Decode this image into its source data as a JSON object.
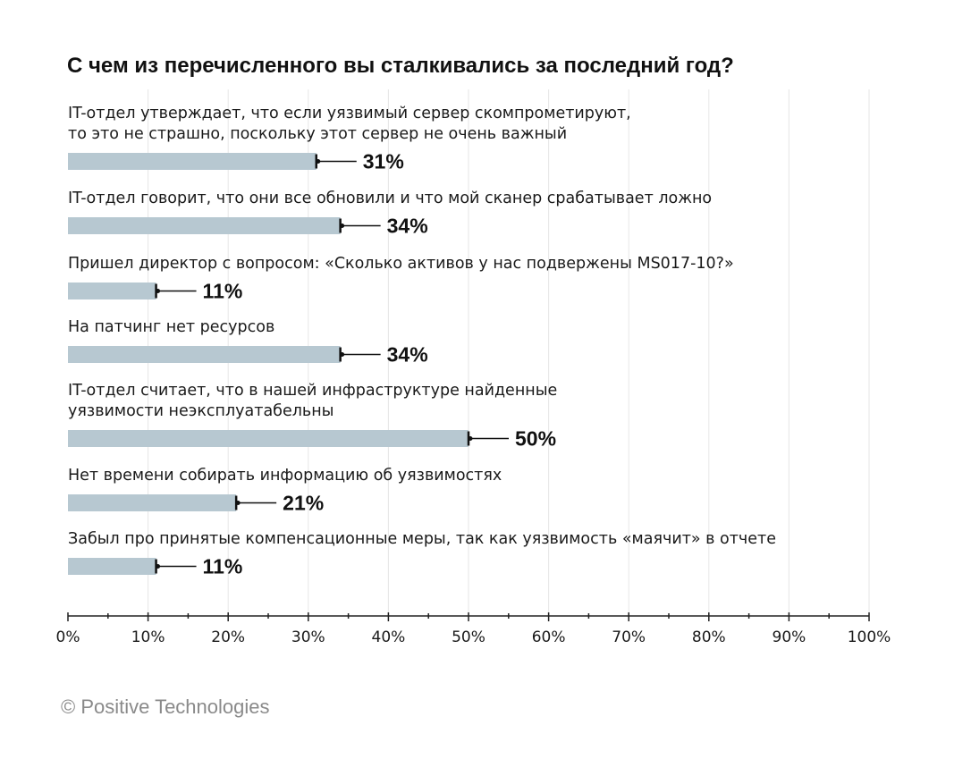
{
  "chart_data": {
    "type": "bar",
    "orientation": "horizontal",
    "title": "С чем из перечисленного вы сталкивались за последний год?",
    "categories": [
      [
        "IT-отдел утверждает, что если уязвимый сервер скомпрометируют,",
        "то это не страшно, поскольку этот сервер не очень важный"
      ],
      [
        "IT-отдел говорит, что они все обновили и что мой сканер срабатывает ложно"
      ],
      [
        "Пришел директор с вопросом: «Сколько активов у нас подвержены MS017-10?»"
      ],
      [
        "На патчинг нет ресурсов"
      ],
      [
        "IT-отдел считает, что в нашей инфраструктуре найденные",
        "уязвимости неэксплуатабельны"
      ],
      [
        "Нет времени собирать информацию об уязвимостях"
      ],
      [
        "Забыл про принятые компенсационные меры, так как уязвимость «маячит» в отчете"
      ]
    ],
    "values": [
      31,
      34,
      11,
      34,
      50,
      21,
      11
    ],
    "value_labels": [
      "31%",
      "34%",
      "11%",
      "34%",
      "50%",
      "21%",
      "11%"
    ],
    "xlim": [
      0,
      100
    ],
    "xticks": [
      0,
      10,
      20,
      30,
      40,
      50,
      60,
      70,
      80,
      90,
      100
    ],
    "xtick_labels": [
      "0%",
      "10%",
      "20%",
      "30%",
      "40%",
      "50%",
      "60%",
      "70%",
      "80%",
      "90%",
      "100%"
    ],
    "grid": true,
    "legend": "none",
    "colors": {
      "bar": "#b7c8d1",
      "grid": "#e6e6e6",
      "axis": "#222222",
      "text": "#1a1a1a"
    }
  },
  "footer": {
    "credit": "© Positive Technologies"
  }
}
